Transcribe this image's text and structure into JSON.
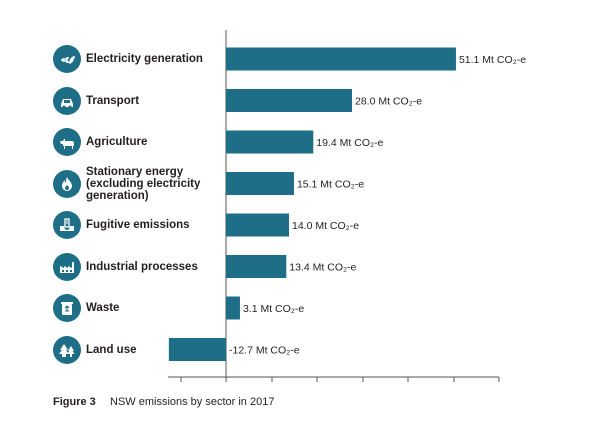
{
  "colors": {
    "bar": "#1d6e86",
    "icon_bg": "#1d6e86",
    "axis": "#555555",
    "text": "#231f20"
  },
  "caption": {
    "label": "Figure 3",
    "text": "NSW emissions by sector in 2017"
  },
  "chart_data": {
    "type": "bar",
    "orientation": "horizontal",
    "unit": "Mt CO₂-e",
    "title": "",
    "xlabel": "",
    "ylabel": "",
    "xlim": [
      -15,
      60
    ],
    "grid": false,
    "categories": [
      "Electricity generation",
      "Transport",
      "Agriculture",
      "Stationary energy (excluding electricity generation)",
      "Fugitive emissions",
      "Industrial processes",
      "Waste",
      "Land use"
    ],
    "values": [
      51.1,
      28.0,
      19.4,
      15.1,
      14.0,
      13.4,
      3.1,
      -12.7
    ],
    "data_labels": [
      "51.1 Mt CO₂-e",
      "28.0 Mt CO₂-e",
      "19.4 Mt CO₂-e",
      "15.1 Mt CO₂-e",
      "14.0 Mt CO₂-e",
      "13.4 Mt CO₂-e",
      "3.1 Mt CO₂-e",
      "-12.7 Mt CO₂-e"
    ],
    "icons": [
      "plug-leaf-icon",
      "car-icon",
      "cow-icon",
      "flame-icon",
      "pipe-icon",
      "factory-icon",
      "recycle-bin-icon",
      "trees-icon"
    ]
  }
}
